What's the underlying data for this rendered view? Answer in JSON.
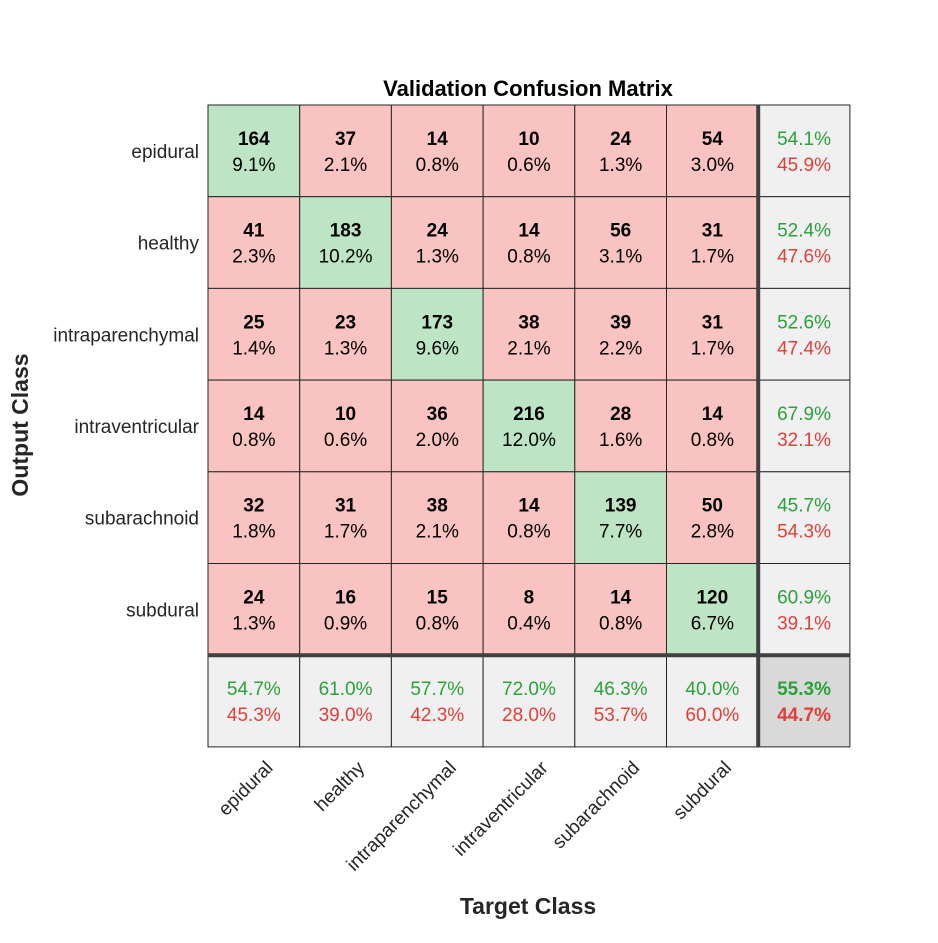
{
  "chart_data": {
    "type": "heatmap",
    "title": "Validation Confusion Matrix",
    "xlabel": "Target Class",
    "ylabel": "Output Class",
    "classes": [
      "epidural",
      "healthy",
      "intraparenchymal",
      "intraventricular",
      "subarachnoid",
      "subdural"
    ],
    "counts": [
      [
        164,
        37,
        14,
        10,
        24,
        54
      ],
      [
        41,
        183,
        24,
        14,
        56,
        31
      ],
      [
        25,
        23,
        173,
        38,
        39,
        31
      ],
      [
        14,
        10,
        36,
        216,
        28,
        14
      ],
      [
        32,
        31,
        38,
        14,
        139,
        50
      ],
      [
        24,
        16,
        15,
        8,
        14,
        120
      ]
    ],
    "cell_percents": [
      [
        "9.1%",
        "2.1%",
        "0.8%",
        "0.6%",
        "1.3%",
        "3.0%"
      ],
      [
        "2.3%",
        "10.2%",
        "1.3%",
        "0.8%",
        "3.1%",
        "1.7%"
      ],
      [
        "1.4%",
        "1.3%",
        "9.6%",
        "2.1%",
        "2.2%",
        "1.7%"
      ],
      [
        "0.8%",
        "0.6%",
        "2.0%",
        "12.0%",
        "1.6%",
        "0.8%"
      ],
      [
        "1.8%",
        "1.7%",
        "2.1%",
        "0.8%",
        "7.7%",
        "2.8%"
      ],
      [
        "1.3%",
        "0.9%",
        "0.8%",
        "0.4%",
        "0.8%",
        "6.7%"
      ]
    ],
    "row_summary": [
      {
        "correct": "54.1%",
        "incorrect": "45.9%"
      },
      {
        "correct": "52.4%",
        "incorrect": "47.6%"
      },
      {
        "correct": "52.6%",
        "incorrect": "47.4%"
      },
      {
        "correct": "67.9%",
        "incorrect": "32.1%"
      },
      {
        "correct": "45.7%",
        "incorrect": "54.3%"
      },
      {
        "correct": "60.9%",
        "incorrect": "39.1%"
      }
    ],
    "col_summary": [
      {
        "correct": "54.7%",
        "incorrect": "45.3%"
      },
      {
        "correct": "61.0%",
        "incorrect": "39.0%"
      },
      {
        "correct": "57.7%",
        "incorrect": "42.3%"
      },
      {
        "correct": "72.0%",
        "incorrect": "28.0%"
      },
      {
        "correct": "46.3%",
        "incorrect": "53.7%"
      },
      {
        "correct": "40.0%",
        "incorrect": "60.0%"
      }
    ],
    "overall": {
      "correct": "55.3%",
      "incorrect": "44.7%"
    },
    "colors": {
      "diagonal": "#bde5c5",
      "off_diagonal": "#f8c3c0",
      "summary": "#f0f0f0",
      "overall": "#d9d9d9",
      "correct_text": "#2ba13a",
      "incorrect_text": "#e0403b",
      "grid": "#262626"
    }
  }
}
